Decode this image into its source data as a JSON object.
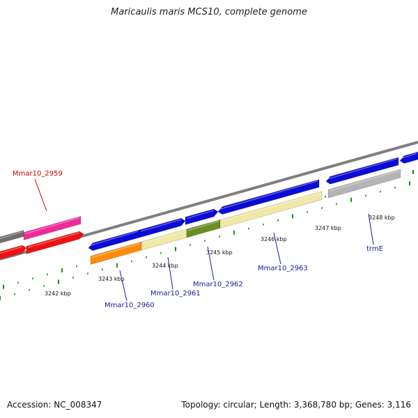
{
  "title": "Maricaulis maris MCS10, complete genome",
  "footer": {
    "accession": "Accession: NC_008347",
    "summary": "Topology: circular; Length: 3,368,780 bp; Genes: 3,116"
  },
  "colors": {
    "blue": "#0b0bd6",
    "red": "#ee1111",
    "magenta": "#ee2a9a",
    "orange": "#ff8c0a",
    "pale": "#f0e8a6",
    "olive": "#6b8e23",
    "gray": "#b4b4b4",
    "dark": "#6e6e6e",
    "tick": "#1a8a1a",
    "label_blue": "#1a1aa0",
    "label_red": "#cc0000"
  },
  "scale_labels": [
    "3242 kbp",
    "3243 kbp",
    "3244 kbp",
    "3245 kbp",
    "3246 kbp",
    "3247 kbp",
    "3248 kbp"
  ],
  "gene_labels": [
    {
      "name": "Mmar10_2959",
      "color": "red"
    },
    {
      "name": "Mmar10_2960",
      "color": "blue"
    },
    {
      "name": "Mmar10_2961",
      "color": "blue"
    },
    {
      "name": "Mmar10_2962",
      "color": "blue"
    },
    {
      "name": "Mmar10_2963",
      "color": "blue"
    },
    {
      "name": "trmE",
      "color": "blue"
    }
  ]
}
